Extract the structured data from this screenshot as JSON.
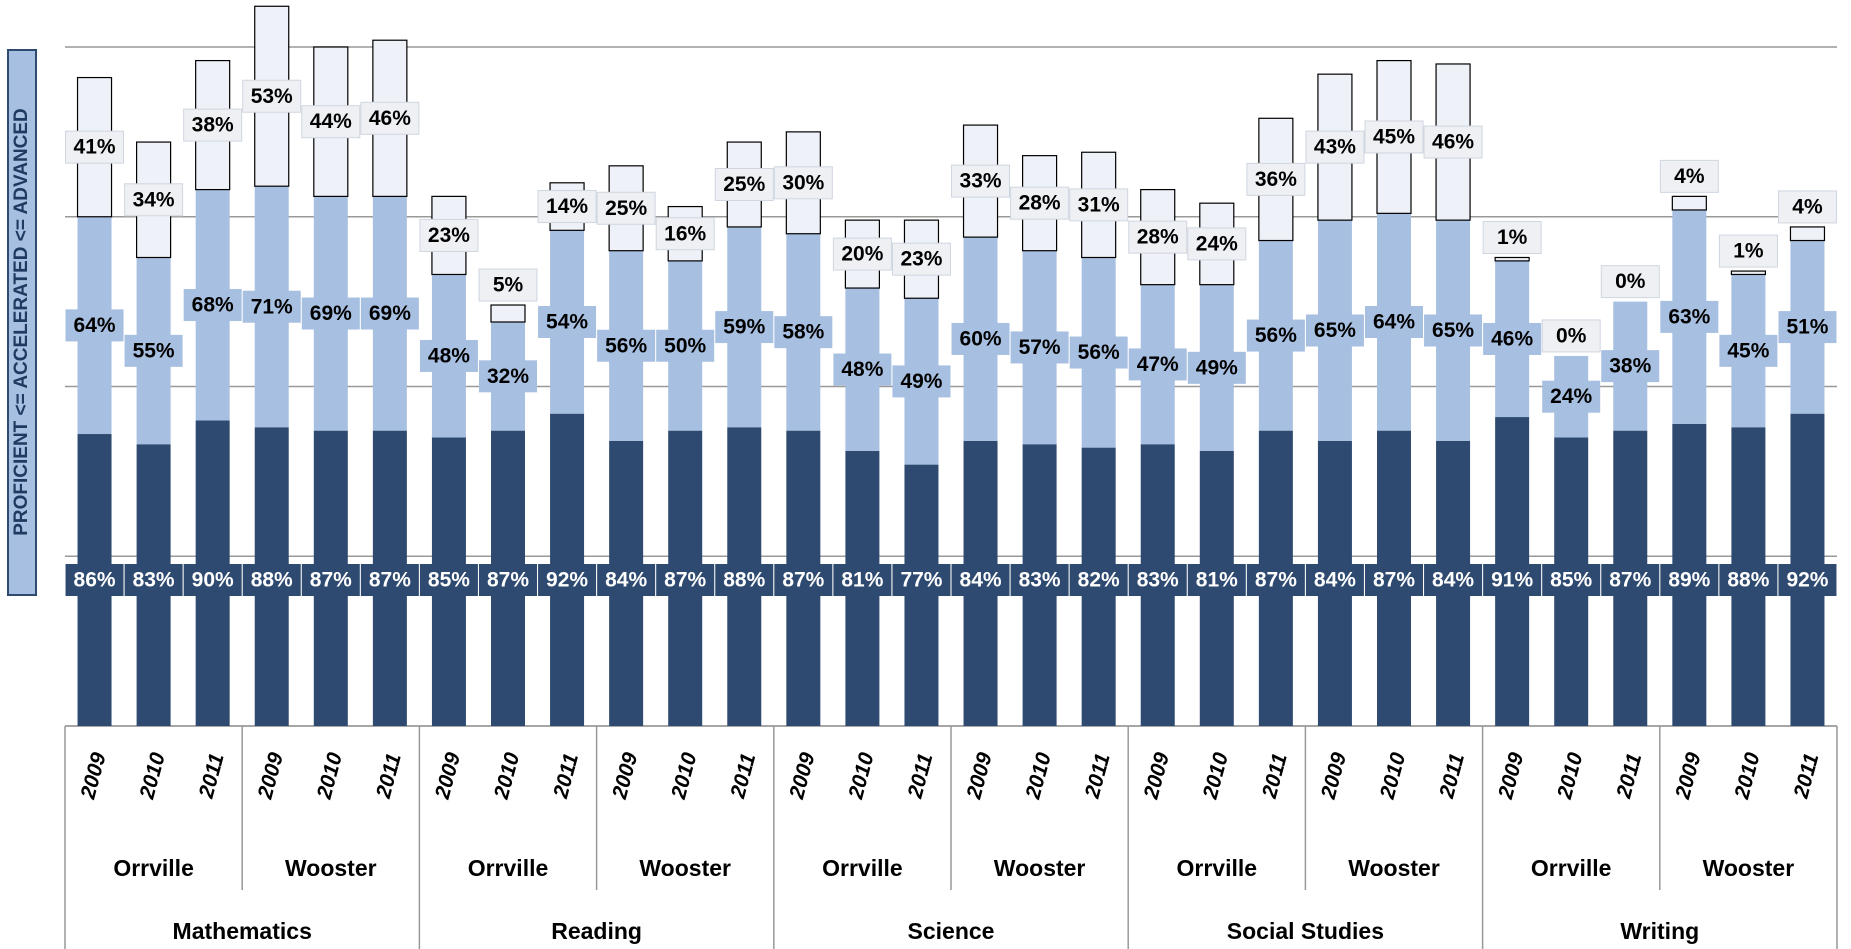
{
  "chart_data": {
    "type": "stacked-bar",
    "y_label": "PROFICIENT <= ACCELERATED <= ADVANCED",
    "categories": [
      "2009",
      "2010",
      "2011",
      "2009",
      "2010",
      "2011",
      "2009",
      "2010",
      "2011",
      "2009",
      "2010",
      "2011",
      "2009",
      "2010",
      "2011",
      "2009",
      "2010",
      "2011",
      "2009",
      "2010",
      "2011",
      "2009",
      "2010",
      "2011",
      "2009",
      "2010",
      "2011",
      "2009",
      "2010",
      "2011"
    ],
    "schools": [
      "Orrville",
      "Wooster",
      "Orrville",
      "Wooster",
      "Orrville",
      "Wooster",
      "Orrville",
      "Wooster",
      "Orrville",
      "Wooster"
    ],
    "subjects": [
      "Mathematics",
      "Reading",
      "Science",
      "Social Studies",
      "Writing"
    ],
    "series": [
      {
        "color": "#2e4a70",
        "label_text_color": "#ffffff",
        "values": [
          86,
          83,
          90,
          88,
          87,
          87,
          85,
          87,
          92,
          84,
          87,
          88,
          87,
          81,
          77,
          84,
          83,
          82,
          83,
          81,
          87,
          84,
          87,
          84,
          91,
          85,
          87,
          89,
          88,
          92
        ],
        "value_labels": [
          "86%",
          "83%",
          "90%",
          "88%",
          "87%",
          "87%",
          "85%",
          "87%",
          "92%",
          "84%",
          "87%",
          "88%",
          "87%",
          "81%",
          "77%",
          "84%",
          "83%",
          "82%",
          "83%",
          "81%",
          "87%",
          "84%",
          "87%",
          "84%",
          "91%",
          "85%",
          "87%",
          "89%",
          "88%",
          "92%"
        ]
      },
      {
        "color": "#a7bfe0",
        "label_text_color": "#000000",
        "values": [
          64,
          55,
          68,
          71,
          69,
          69,
          48,
          32,
          54,
          56,
          50,
          59,
          58,
          48,
          49,
          60,
          57,
          56,
          47,
          49,
          56,
          65,
          64,
          65,
          46,
          24,
          38,
          63,
          45,
          51
        ],
        "value_labels": [
          "64%",
          "55%",
          "68%",
          "71%",
          "69%",
          "69%",
          "48%",
          "32%",
          "54%",
          "56%",
          "50%",
          "59%",
          "58%",
          "48%",
          "49%",
          "60%",
          "57%",
          "56%",
          "47%",
          "49%",
          "56%",
          "65%",
          "64%",
          "65%",
          "46%",
          "24%",
          "38%",
          "63%",
          "45%",
          "51%"
        ]
      },
      {
        "color": "#eef2f8",
        "label_text_color": "#000000",
        "values": [
          41,
          34,
          38,
          53,
          44,
          46,
          23,
          5,
          14,
          25,
          16,
          25,
          30,
          20,
          23,
          33,
          28,
          31,
          28,
          24,
          36,
          43,
          45,
          46,
          1,
          0,
          0,
          4,
          1,
          4
        ],
        "value_labels": [
          "41%",
          "34%",
          "38%",
          "53%",
          "44%",
          "46%",
          "23%",
          "5%",
          "14%",
          "25%",
          "16%",
          "25%",
          "30%",
          "20%",
          "23%",
          "33%",
          "28%",
          "31%",
          "28%",
          "24%",
          "36%",
          "43%",
          "45%",
          "46%",
          "1%",
          "0%",
          "0%",
          "4%",
          "1%",
          "4%"
        ]
      }
    ],
    "ylim": [
      0,
      200
    ],
    "yticks": [
      0,
      50,
      100,
      150,
      200
    ],
    "grid": true
  }
}
